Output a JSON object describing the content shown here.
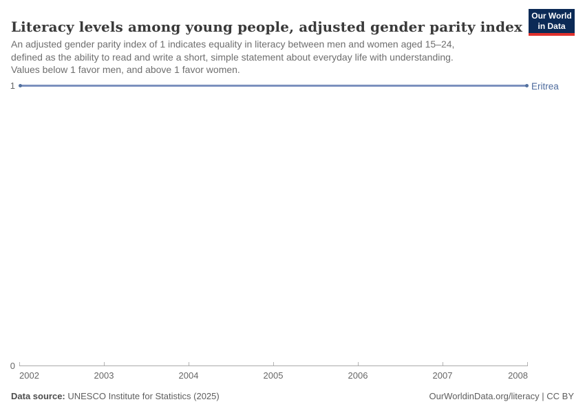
{
  "header": {
    "title": "Literacy levels among young people, adjusted gender parity index",
    "subtitle_lines": [
      "An adjusted gender parity index of 1 indicates equality in literacy between men and women aged 15–24,",
      "defined as the ability to read and write a short, simple statement about everyday life with understanding.",
      "Values below 1 favor men, and above 1 favor women."
    ],
    "logo": {
      "line1": "Our World",
      "line2": "in Data"
    }
  },
  "chart_data": {
    "type": "line",
    "title": "Literacy levels among young people, adjusted gender parity index",
    "series": [
      {
        "name": "Eritrea",
        "x": [
          2002,
          2003,
          2004,
          2005,
          2006,
          2007,
          2008
        ],
        "values": [
          1,
          1,
          1,
          1,
          1,
          1,
          1
        ]
      }
    ],
    "xlabel": "",
    "ylabel": "",
    "xlim": [
      2002,
      2008
    ],
    "ylim": [
      0,
      1
    ],
    "xticks": [
      2002,
      2003,
      2004,
      2005,
      2006,
      2007,
      2008
    ],
    "yticks": [
      0,
      1
    ],
    "grid": false,
    "legend_position": "end-of-line",
    "line_color": "#7b90bd",
    "entity_label_color": "#4c6a9c"
  },
  "axes": {
    "y_top_label": "1",
    "y_bottom_label": "0",
    "x_tick_labels": [
      "2002",
      "2003",
      "2004",
      "2005",
      "2006",
      "2007",
      "2008"
    ]
  },
  "series_label": "Eritrea",
  "footer": {
    "source_label": "Data source:",
    "source_value": " UNESCO Institute for Statistics (2025)",
    "credit": "OurWorldinData.org/literacy | CC BY"
  }
}
